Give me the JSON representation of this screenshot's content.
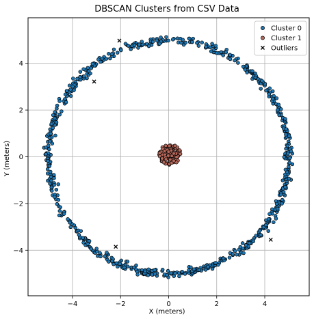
{
  "chart_data": {
    "type": "scatter",
    "title": "DBSCAN Clusters from CSV Data",
    "xlabel": "X (meters)",
    "ylabel": "Y (meters)",
    "xlim": [
      -5.85,
      5.85
    ],
    "ylim": [
      -5.95,
      5.95
    ],
    "xticks": [
      -4,
      -2,
      0,
      2,
      4
    ],
    "yticks": [
      -4,
      -2,
      0,
      2,
      4
    ],
    "xtick_labels": [
      "−4",
      "−2",
      "0",
      "2",
      "4"
    ],
    "ytick_labels": [
      "−4",
      "−2",
      "0",
      "2",
      "4"
    ],
    "grid": true,
    "legend_position": "top-right",
    "series": [
      {
        "name": "Cluster 0",
        "marker": "circle",
        "color": "#1f77b4",
        "edge_color": "#000000",
        "description_generator": "ring",
        "center": [
          0,
          0
        ],
        "radius": 5.0,
        "spread": 0.2,
        "count": 720
      },
      {
        "name": "Cluster 1",
        "marker": "circle",
        "color": "#b5675a",
        "edge_color": "#000000",
        "description_generator": "blob",
        "center": [
          0.05,
          0.1
        ],
        "radius": 0.45,
        "count": 110
      },
      {
        "name": "Outliers",
        "marker": "x",
        "color": "#000000",
        "points": [
          [
            -2.05,
            4.97
          ],
          [
            -3.1,
            3.22
          ],
          [
            -2.2,
            -3.85
          ],
          [
            4.25,
            -3.55
          ]
        ]
      }
    ]
  }
}
